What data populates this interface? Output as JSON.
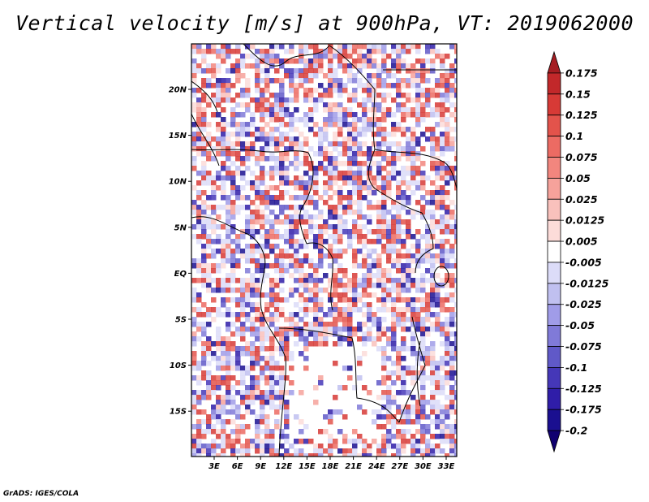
{
  "title": "Vertical velocity [m/s] at 900hPa, VT: 2019062000",
  "footer": "GrADS: IGES/COLA",
  "map": {
    "lat_labels": [
      "20N",
      "15N",
      "10N",
      "5N",
      "EQ",
      "5S",
      "10S",
      "15S"
    ],
    "lon_labels": [
      "3E",
      "6E",
      "9E",
      "12E",
      "15E",
      "18E",
      "21E",
      "24E",
      "27E",
      "30E",
      "33E"
    ]
  },
  "colorbar": {
    "labels": [
      "0.175",
      "0.15",
      "0.125",
      "0.1",
      "0.075",
      "0.05",
      "0.025",
      "0.0125",
      "0.005",
      "-0.005",
      "-0.0125",
      "-0.025",
      "-0.05",
      "-0.075",
      "-0.1",
      "-0.125",
      "-0.175",
      "-0.2"
    ],
    "colors": [
      "#a51d22",
      "#c2282a",
      "#d73a36",
      "#e3534b",
      "#ec6b63",
      "#f2867e",
      "#f6a29b",
      "#f9c1bc",
      "#fcdcd9",
      "#ffffff",
      "#dcdcf8",
      "#c0c0f0",
      "#a09ce8",
      "#807ad8",
      "#6059c8",
      "#4537b8",
      "#2f1da8",
      "#1a0f90",
      "#100070"
    ]
  }
}
